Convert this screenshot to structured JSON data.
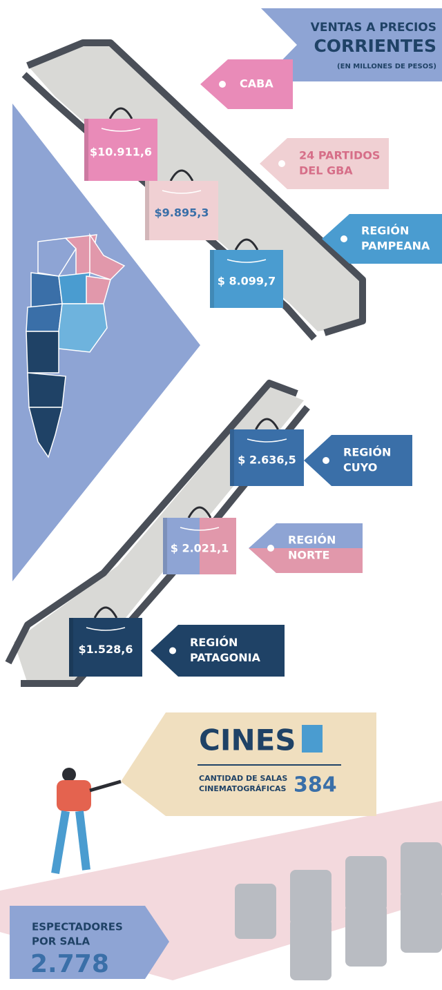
{
  "header": {
    "lines": [
      "VENTAS A PRECIOS",
      "CORRIENTES"
    ],
    "subtitle": "(EN MILLONES DE PESOS)"
  },
  "regions": [
    {
      "name": [
        "CABA"
      ],
      "sales": "$10.911,6"
    },
    {
      "name": [
        "24 PARTIDOS",
        "DEL GBA"
      ],
      "sales": "$9.895,3"
    },
    {
      "name": [
        "REGIÓN",
        "PAMPEANA"
      ],
      "sales": "$ 8.099,7"
    },
    {
      "name": [
        "REGIÓN",
        "CUYO"
      ],
      "sales": "$ 2.636,5"
    },
    {
      "name": [
        "REGIÓN",
        "NORTE"
      ],
      "sales": "$ 2.021,1"
    },
    {
      "name": [
        "REGIÓN",
        "PATAGONIA"
      ],
      "sales": "$1.528,6"
    }
  ],
  "cinemas": {
    "title": "CINES",
    "label": [
      "CANTIDAD DE SALAS",
      "CINEMATOGRÁFICAS"
    ],
    "value": "384"
  },
  "spectators": {
    "label": [
      "ESPECTADORES",
      "POR SALA"
    ],
    "value": "2.778"
  }
}
